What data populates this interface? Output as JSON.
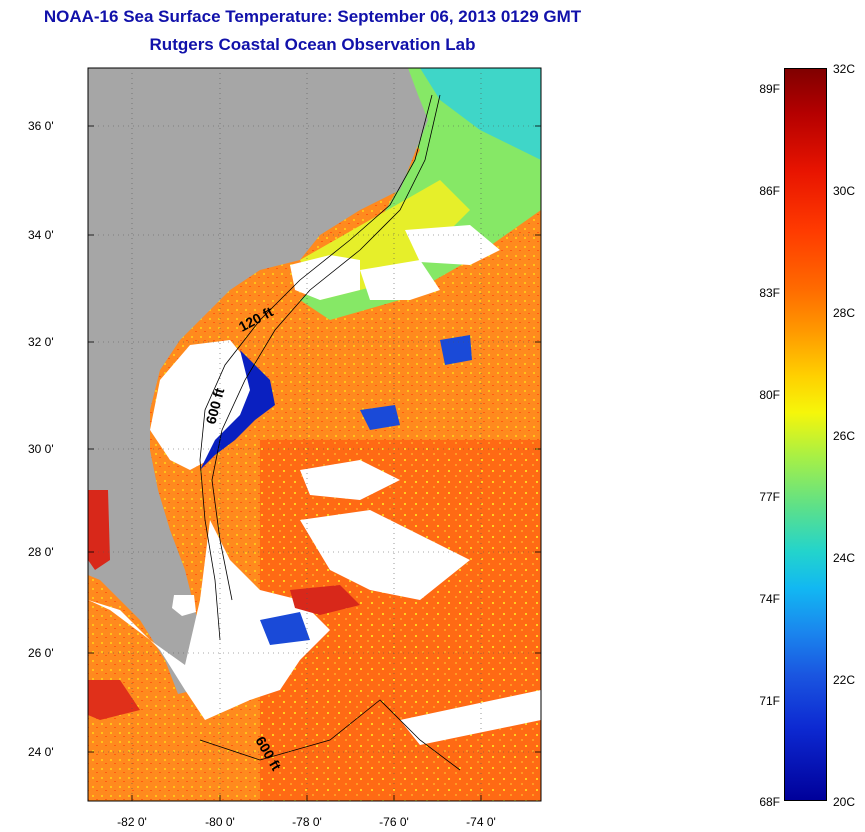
{
  "title_line1": "NOAA-16 Sea Surface Temperature:  September 06, 2013 0129 GMT",
  "title_line2": "Rutgers Coastal Ocean Observation Lab",
  "map": {
    "lat_labels": [
      "36 0'",
      "34 0'",
      "32 0'",
      "30 0'",
      "28 0'",
      "26 0'",
      "24 0'"
    ],
    "lon_labels": [
      "-82 0'",
      "-80 0'",
      "-78 0'",
      "-76 0'",
      "-74 0'"
    ],
    "isobath_labels": [
      "120 ft",
      "600 ft",
      "600 ft"
    ],
    "colors": {
      "land": "#a6a6a6",
      "cloud": "#ffffff",
      "warm": "#ff7a1a",
      "cool": "#0a20c0"
    }
  },
  "colorbar": {
    "fahrenheit_labels": [
      "89F",
      "86F",
      "83F",
      "80F",
      "77F",
      "74F",
      "71F",
      "68F"
    ],
    "celsius_labels": [
      "32C",
      "30C",
      "28C",
      "26C",
      "24C",
      "22C",
      "20C"
    ],
    "range_c": [
      20,
      32
    ]
  }
}
